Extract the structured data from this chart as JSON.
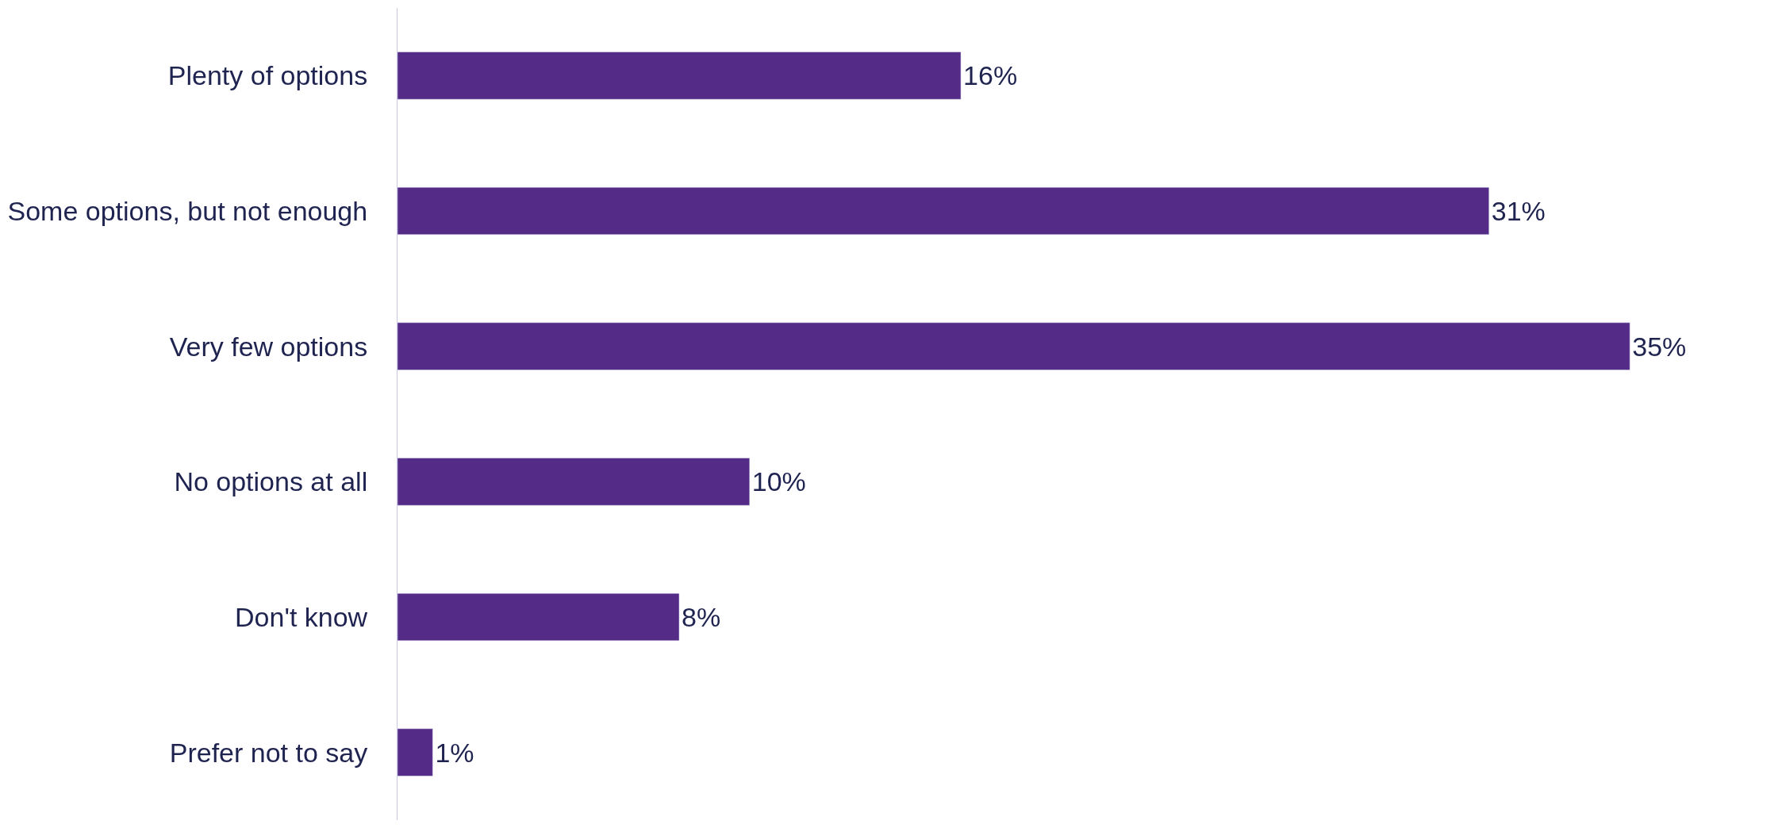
{
  "chart_data": {
    "type": "bar",
    "orientation": "horizontal",
    "categories": [
      "Plenty of options",
      "Some options, but not enough",
      "Very few options",
      "No options at all",
      "Don't know",
      "Prefer not to say"
    ],
    "values": [
      16,
      31,
      35,
      10,
      8,
      1
    ],
    "value_labels": [
      "16%",
      "31%",
      "35%",
      "10%",
      "8%",
      "1%"
    ],
    "color": "#542c87",
    "tick_labels": "y"
  }
}
